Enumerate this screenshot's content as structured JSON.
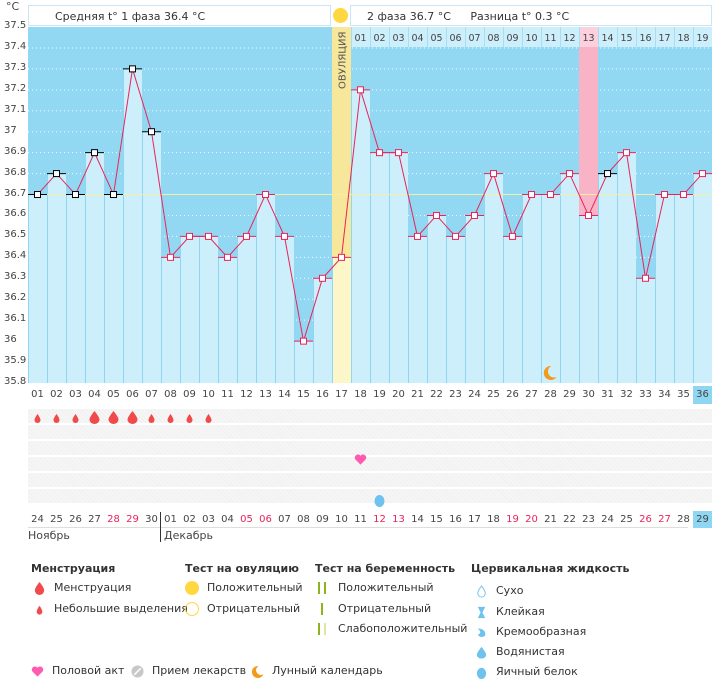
{
  "header": {
    "unit": "°C",
    "phase1_label": "Средняя t° 1 фаза 36.4 °C",
    "phase2_label": "2 фаза 36.7 °C",
    "diff_label": "Разница t° 0.3 °C"
  },
  "chart_data": {
    "type": "line",
    "title": "",
    "ylabel": "°C",
    "ylim": [
      35.8,
      37.5
    ],
    "yticks": [
      "37.5",
      "37.4",
      "37.3",
      "37.2",
      "37.1",
      "37",
      "36.9",
      "36.8",
      "36.7",
      "36.6",
      "36.5",
      "36.4",
      "36.3",
      "36.2",
      "36.1",
      "36",
      "35.9",
      "35.8"
    ],
    "cycle_days": [
      "01",
      "02",
      "03",
      "04",
      "05",
      "06",
      "07",
      "08",
      "09",
      "10",
      "11",
      "12",
      "13",
      "14",
      "15",
      "16",
      "17",
      "18",
      "19",
      "20",
      "21",
      "22",
      "23",
      "24",
      "25",
      "26",
      "27",
      "28",
      "29",
      "30",
      "31",
      "32",
      "33",
      "34",
      "35",
      "36"
    ],
    "temperatures": [
      36.7,
      36.8,
      36.7,
      36.9,
      36.7,
      37.3,
      37.0,
      36.4,
      36.5,
      36.5,
      36.4,
      36.5,
      36.7,
      36.5,
      36.0,
      36.3,
      36.4,
      37.2,
      36.9,
      36.9,
      36.5,
      36.6,
      36.5,
      36.6,
      36.8,
      36.5,
      36.7,
      36.7,
      36.8,
      36.6,
      36.8,
      36.9,
      36.3,
      36.7,
      36.7,
      36.8
    ],
    "excluded_points_black": [
      1,
      2,
      3,
      4,
      5,
      6,
      7,
      31
    ],
    "coverline": 36.7,
    "ovulation_day": 17,
    "ovulation_label": "ОВУЛЯЦИЯ",
    "luteal_days": [
      "01",
      "02",
      "03",
      "04",
      "05",
      "06",
      "07",
      "08",
      "09",
      "10",
      "11",
      "12",
      "13",
      "14",
      "15",
      "16",
      "17",
      "18",
      "19"
    ],
    "highlight_luteal_day": "13",
    "moon_day": 28,
    "current_day": "36"
  },
  "calendar": {
    "dates": [
      "24",
      "25",
      "26",
      "27",
      "28",
      "29",
      "30",
      "01",
      "02",
      "03",
      "04",
      "05",
      "06",
      "07",
      "08",
      "09",
      "10",
      "11",
      "12",
      "13",
      "14",
      "15",
      "16",
      "17",
      "18",
      "19",
      "20",
      "21",
      "22",
      "23",
      "24",
      "25",
      "26",
      "27",
      "28",
      "29"
    ],
    "weekend_indices": [
      4,
      5,
      11,
      12,
      18,
      19,
      25,
      26,
      32,
      33
    ],
    "months": [
      "Ноябрь",
      "Декабрь"
    ],
    "current_date": "29",
    "menstruation": [
      {
        "day": 1,
        "size": "small"
      },
      {
        "day": 2,
        "size": "small"
      },
      {
        "day": 3,
        "size": "small"
      },
      {
        "day": 4,
        "size": "large"
      },
      {
        "day": 5,
        "size": "large"
      },
      {
        "day": 6,
        "size": "large"
      },
      {
        "day": 7,
        "size": "small"
      },
      {
        "day": 8,
        "size": "small"
      },
      {
        "day": 9,
        "size": "small"
      },
      {
        "day": 10,
        "size": "small"
      }
    ],
    "intercourse_days": [
      18
    ],
    "cervical_fluid": [
      {
        "day": 19,
        "type": "egg-white"
      }
    ]
  },
  "legend": {
    "menstruation": {
      "title": "Менструация",
      "items": [
        "Менструация",
        "Небольшие выделения"
      ]
    },
    "ovulation_test": {
      "title": "Тест на овуляцию",
      "items": [
        "Положительный",
        "Отрицательный"
      ]
    },
    "pregnancy_test": {
      "title": "Тест на беременность",
      "items": [
        "Положительный",
        "Отрицательный",
        "Слабоположительный"
      ]
    },
    "cervical_fluid": {
      "title": "Цервикальная жидкость",
      "items": [
        "Сухо",
        "Клейкая",
        "Кремообразная",
        "Водянистая",
        "Яичный белок"
      ]
    },
    "other": [
      "Половой акт",
      "Прием лекарств",
      "Лунный календарь"
    ]
  },
  "colors": {
    "plot_bg": "#92d8f3",
    "bar": "#cdeefb",
    "line": "#e8245a",
    "ovulation": "#f7e79b",
    "highlight": "#f9b3c6",
    "coverline": "#f5f0a0",
    "blood": "#f04a4a",
    "heart": "#ff5cb0",
    "moon": "#f29a1a",
    "drop": "#6ec3ee"
  }
}
